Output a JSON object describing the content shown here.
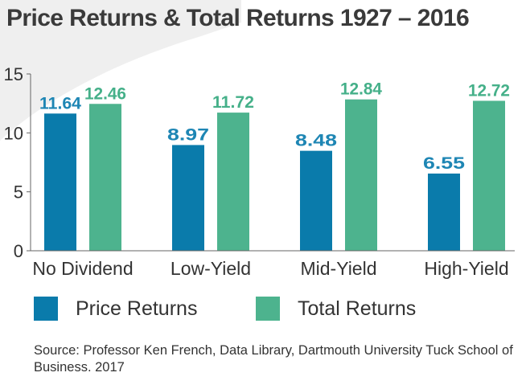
{
  "title": "Price Returns & Total Returns 1927 – 2016",
  "source": "Source: Professor Ken French, Data Library, Dartmouth University Tuck School of Business. 2017",
  "colors": {
    "price": "#0a7bab",
    "total": "#4db38e",
    "price_label": "#1e86b4",
    "total_label": "#45b089",
    "axis": "#666666",
    "swoosh": "#efefef"
  },
  "chart_data": {
    "type": "bar",
    "title": "Price Returns & Total Returns 1927 – 2016",
    "categories": [
      "No Dividend",
      "Low-Yield",
      "Mid-Yield",
      "High-Yield"
    ],
    "series": [
      {
        "name": "Price Returns",
        "values": [
          11.64,
          8.97,
          8.48,
          6.55
        ]
      },
      {
        "name": "Total Returns",
        "values": [
          12.46,
          11.72,
          12.84,
          12.72
        ]
      }
    ],
    "data_labels": [
      [
        "11.64",
        "8.97",
        "8.48",
        "6.55"
      ],
      [
        "12.46",
        "11.72",
        "12.84",
        "12.72"
      ]
    ],
    "ylim": [
      0,
      15
    ],
    "yticks": [
      0,
      5,
      10,
      15
    ],
    "ytick_labels": [
      "0",
      "5",
      "10",
      "15"
    ],
    "grid": false,
    "legend_position": "bottom-left"
  }
}
